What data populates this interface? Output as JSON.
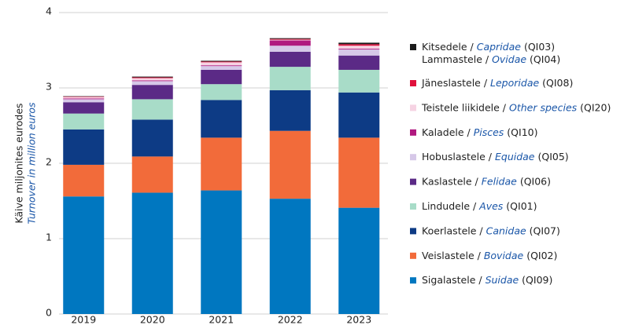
{
  "chart_data": {
    "type": "stacked_bar",
    "ylabel": [
      "Käive miljonites eurodes",
      "Turnover in million euros"
    ],
    "categories": [
      "2019",
      "2020",
      "2021",
      "2022",
      "2023"
    ],
    "ylim": [
      0,
      4
    ],
    "yticks": [
      0,
      1,
      2,
      3,
      4
    ],
    "grid": true,
    "legend": "right",
    "series": [
      {
        "name": [
          [
            "Sigalastele / ",
            "Suidae",
            " (QI09)"
          ]
        ],
        "color": "#0077c0",
        "values": [
          1.56,
          1.61,
          1.64,
          1.53,
          1.41
        ]
      },
      {
        "name": [
          [
            "Veislastele / ",
            "Bovidae",
            " (QI02)"
          ]
        ],
        "color": "#f26b3a",
        "values": [
          0.42,
          0.48,
          0.7,
          0.9,
          0.93
        ]
      },
      {
        "name": [
          [
            "Koerlastele / ",
            "Canidae",
            " (QI07)"
          ]
        ],
        "color": "#0d3b85",
        "values": [
          0.47,
          0.49,
          0.5,
          0.54,
          0.6
        ]
      },
      {
        "name": [
          [
            "Lindudele / ",
            "Aves",
            " (QI01)"
          ]
        ],
        "color": "#a8dcc8",
        "values": [
          0.21,
          0.27,
          0.21,
          0.31,
          0.3
        ]
      },
      {
        "name": [
          [
            "Kaslastele / ",
            "Felidae",
            " (QI06)"
          ]
        ],
        "color": "#5b2a86",
        "values": [
          0.15,
          0.19,
          0.19,
          0.2,
          0.19
        ]
      },
      {
        "name": [
          [
            "Hobuslastele / ",
            "Equidae",
            " (QI05)"
          ]
        ],
        "color": "#d6c8e8",
        "values": [
          0.04,
          0.05,
          0.05,
          0.08,
          0.08
        ]
      },
      {
        "name": [
          [
            "Kaladele / ",
            "Pisces",
            " (QI10)"
          ]
        ],
        "color": "#b0197f",
        "values": [
          0.01,
          0.01,
          0.01,
          0.07,
          0.01
        ]
      },
      {
        "name": [
          [
            "Teistele liikidele / ",
            "Other species",
            " (QI20)"
          ]
        ],
        "color": "#f6d3e3",
        "values": [
          0.02,
          0.03,
          0.04,
          0.01,
          0.04
        ]
      },
      {
        "name": [
          [
            "Jäneslastele / ",
            "Leporidae",
            " (QI08)"
          ]
        ],
        "color": "#e0103c",
        "values": [
          0.005,
          0.01,
          0.01,
          0.01,
          0.02
        ]
      },
      {
        "name": [
          [
            "Kitsedele / ",
            "Capridae",
            " (QI03)"
          ],
          [
            "Lammastele / ",
            "Ovidae",
            " (QI04)"
          ]
        ],
        "color": "#1a1a1a",
        "values": [
          0.005,
          0.01,
          0.01,
          0.01,
          0.02
        ]
      }
    ]
  }
}
